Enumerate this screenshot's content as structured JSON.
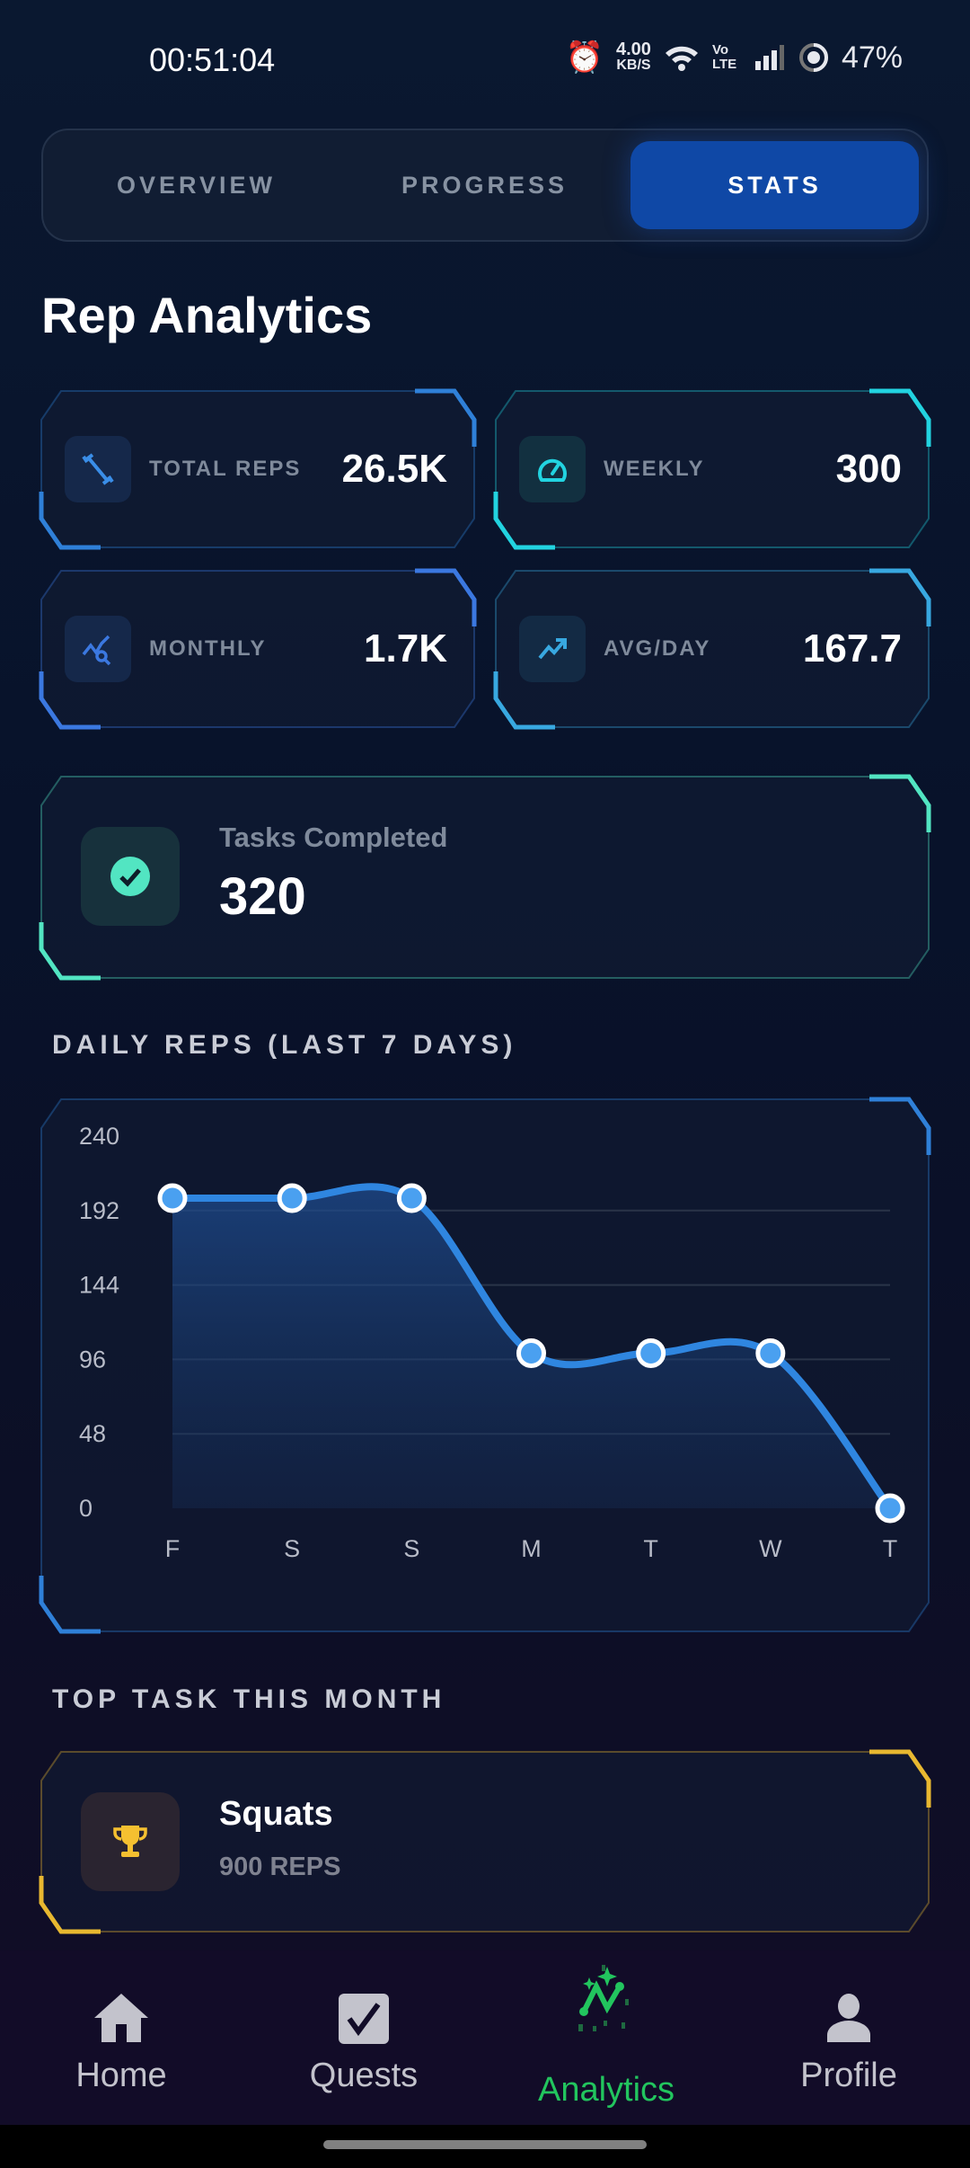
{
  "status_bar": {
    "time": "00:51:04",
    "net_speed": "4.00",
    "net_unit": "KB/S",
    "volte": "Vo LTE",
    "battery": "47%"
  },
  "tabs": [
    {
      "label": "OVERVIEW",
      "active": false
    },
    {
      "label": "PROGRESS",
      "active": false
    },
    {
      "label": "STATS",
      "active": true
    }
  ],
  "page_title": "Rep Analytics",
  "stats": [
    {
      "label": "TOTAL REPS",
      "value": "26.5K",
      "icon": "dumbbell-icon",
      "color": "#2f80d8"
    },
    {
      "label": "WEEKLY",
      "value": "300",
      "icon": "speedometer-icon",
      "color": "#22d3e0"
    },
    {
      "label": "MONTHLY",
      "value": "1.7K",
      "icon": "chart-search-icon",
      "color": "#3b78e0"
    },
    {
      "label": "AVG/DAY",
      "value": "167.7",
      "icon": "trending-up-icon",
      "color": "#38a8e0"
    }
  ],
  "tasks": {
    "label": "Tasks Completed",
    "value": "320",
    "icon": "check-circle-icon",
    "color": "#52e5c2"
  },
  "chart_section_title": "DAILY REPS (LAST 7 DAYS)",
  "chart_data": {
    "type": "area",
    "categories": [
      "F",
      "S",
      "S",
      "M",
      "T",
      "W",
      "T"
    ],
    "values": [
      200,
      200,
      200,
      100,
      100,
      100,
      0
    ],
    "ylim": [
      0,
      240
    ],
    "yticks": [
      "0",
      "48",
      "96",
      "144",
      "192",
      "240"
    ],
    "grid": true,
    "color": "#2f86e0",
    "frame_color": "#2f80d8"
  },
  "top_task_section_title": "TOP TASK THIS MONTH",
  "top_task": {
    "name": "Squats",
    "reps": "900 REPS",
    "icon": "trophy-icon",
    "color": "#e8b830"
  },
  "nav": [
    {
      "label": "Home",
      "icon": "home-icon",
      "active": false
    },
    {
      "label": "Quests",
      "icon": "checkbox-icon",
      "active": false
    },
    {
      "label": "Analytics",
      "icon": "analytics-icon",
      "active": true
    },
    {
      "label": "Profile",
      "icon": "person-icon",
      "active": false
    }
  ],
  "active_color": "#22c55e"
}
